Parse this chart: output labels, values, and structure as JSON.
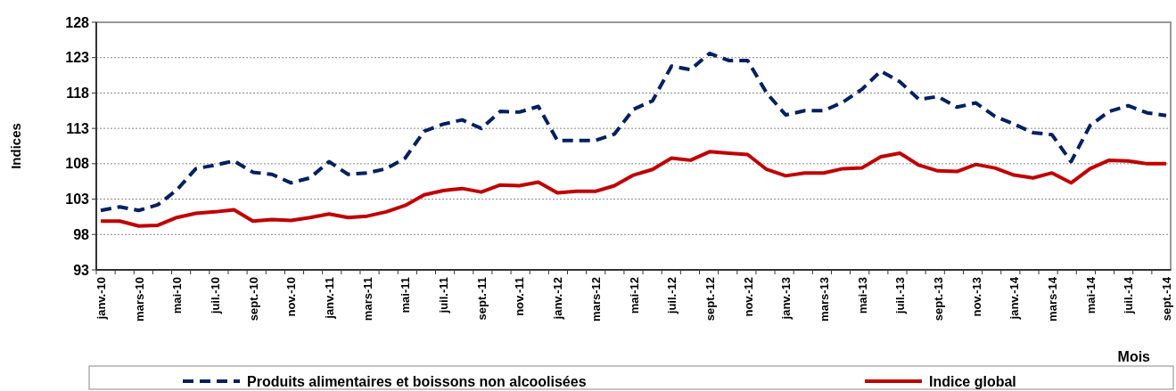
{
  "chart_data": {
    "type": "line",
    "xlabel": "Mois",
    "ylabel": "Indices",
    "categories": [
      "janv.-10",
      null,
      "mars-10",
      null,
      "mai-10",
      null,
      "juil.-10",
      null,
      "sept.-10",
      null,
      "nov.-10",
      null,
      "janv.-11",
      null,
      "mars-11",
      null,
      "mai-11",
      null,
      "juil.-11",
      null,
      "sept.-11",
      null,
      "nov.-11",
      null,
      "janv.-12",
      null,
      "mars-12",
      null,
      "mai-12",
      null,
      "juil.-12",
      null,
      "sept.-12",
      null,
      "nov.-12",
      null,
      "janv.-13",
      null,
      "mars-13",
      null,
      "mai-13",
      null,
      "juil.-13",
      null,
      "sept.-13",
      null,
      "nov.-13",
      null,
      "janv.-14",
      null,
      "mars-14",
      null,
      "mai-14",
      null,
      "juil.-14",
      null,
      "sept.-14"
    ],
    "series": [
      {
        "name": "Produits alimentaires et boissons non alcoolisées",
        "color": "#002060",
        "line_style": "dashed",
        "values": [
          101.4,
          101.9,
          101.4,
          102.2,
          104.3,
          107.3,
          107.8,
          108.4,
          106.8,
          106.5,
          105.3,
          106.0,
          108.3,
          106.5,
          106.7,
          107.3,
          108.8,
          112.6,
          113.6,
          114.2,
          113.0,
          115.4,
          115.3,
          116.1,
          111.3,
          111.3,
          111.3,
          112.2,
          115.7,
          116.9,
          121.8,
          121.3,
          123.6,
          122.6,
          122.6,
          118.0,
          114.9,
          115.5,
          115.5,
          116.7,
          118.5,
          121.1,
          119.6,
          117.1,
          117.5,
          116.0,
          116.6,
          114.7,
          113.6,
          112.4,
          112.1,
          108.3,
          113.4,
          115.4,
          116.2,
          115.2,
          114.8
        ]
      },
      {
        "name": "Indice global",
        "color": "#c00000",
        "line_style": "solid",
        "values": [
          99.9,
          99.9,
          99.2,
          99.3,
          100.4,
          101.0,
          101.2,
          101.5,
          99.9,
          100.1,
          100.0,
          100.4,
          100.9,
          100.4,
          100.6,
          101.2,
          102.1,
          103.6,
          104.2,
          104.5,
          104.0,
          105.0,
          104.9,
          105.4,
          103.9,
          104.1,
          104.1,
          104.9,
          106.4,
          107.2,
          108.8,
          108.5,
          109.7,
          109.5,
          109.3,
          107.2,
          106.3,
          106.7,
          106.7,
          107.3,
          107.4,
          109.0,
          109.5,
          107.8,
          107.0,
          106.9,
          107.9,
          107.4,
          106.4,
          106.0,
          106.7,
          105.3,
          107.3,
          108.5,
          108.4,
          108.0,
          108.0
        ]
      }
    ],
    "ylim": [
      93,
      128
    ],
    "yticks": [
      93,
      98,
      103,
      108,
      113,
      118,
      123,
      128
    ],
    "grid": "y",
    "legend": "bottom"
  }
}
